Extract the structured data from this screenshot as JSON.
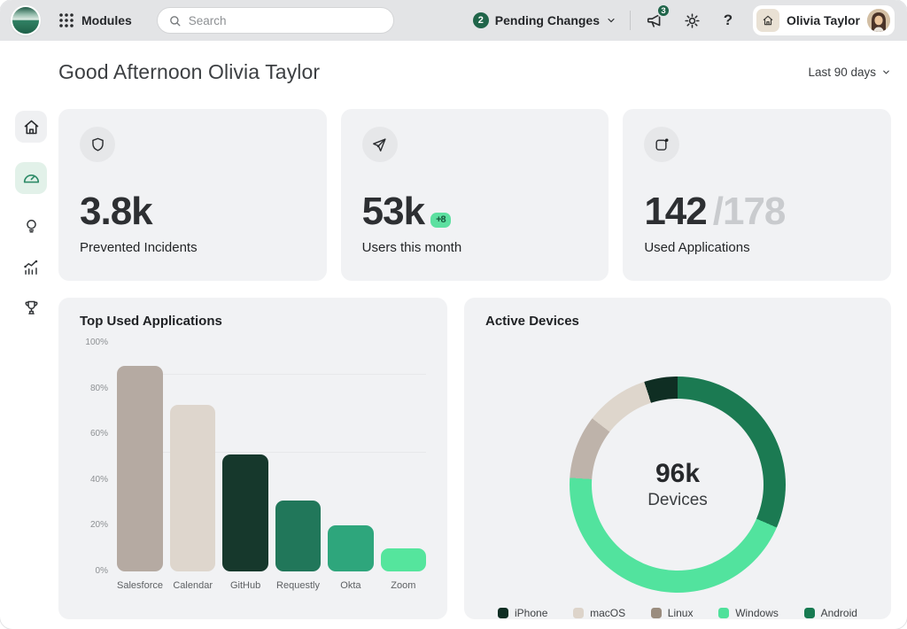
{
  "topbar": {
    "modules_label": "Modules",
    "search_placeholder": "Search",
    "pending_count": "2",
    "pending_label": "Pending Changes",
    "notifications_count": "3",
    "help_label": "?",
    "user_name": "Olivia Taylor"
  },
  "page": {
    "greeting": "Good Afternoon Olivia Taylor",
    "date_range": "Last 90 days"
  },
  "sidebar": {
    "items": [
      {
        "icon": "home-icon",
        "active": false
      },
      {
        "icon": "dashboard-gauge-icon",
        "active": true
      },
      {
        "icon": "lightbulb-icon",
        "active": false
      },
      {
        "icon": "analytics-trend-icon",
        "active": false
      },
      {
        "icon": "trophy-icon",
        "active": false
      }
    ]
  },
  "stats": [
    {
      "icon": "shield-icon",
      "value": "3.8k",
      "label": "Prevented Incidents"
    },
    {
      "icon": "send-arrow-icon",
      "value": "53k",
      "badge": "+8",
      "label": "Users this month"
    },
    {
      "icon": "app-window-dot-icon",
      "value_used": "142",
      "value_total": "/178",
      "label": "Used Applications"
    }
  ],
  "colors": {
    "topbar_bg": "#e3e4e6",
    "card_bg": "#f1f2f4",
    "accent_green_dark": "#20654a",
    "accent_mint": "#5ce0a0",
    "sidebar_active_bg": "#e2f1e9",
    "sidebar_active_icon": "#2e8b68",
    "muted_total": "#c9cbce"
  },
  "chart_data": [
    {
      "type": "bar",
      "title": "Top Used Applications",
      "categories": [
        "Salesforce",
        "Calendar",
        "GitHub",
        "Requestly",
        "Okta",
        "Zoom"
      ],
      "values": [
        90,
        73,
        51,
        31,
        20,
        10
      ],
      "unit": "%",
      "colors": [
        "#b5aaa2",
        "#ded6cd",
        "#16382c",
        "#21775a",
        "#2ea67c",
        "#55e59d"
      ],
      "ylabel_ticks": [
        "0%",
        "20%",
        "40%",
        "60%",
        "80%",
        "100%"
      ],
      "ylim": [
        0,
        100
      ],
      "gridlines_pct": [
        52,
        86
      ],
      "legend_position": "none"
    },
    {
      "type": "donut",
      "title": "Active Devices",
      "center_value": "96k",
      "center_label": "Devices",
      "start_angle_deg": 0,
      "direction": "clockwise",
      "segments": [
        {
          "name": "Android",
          "value": 31.5,
          "color": "#1b7a52",
          "swatch": "#177a51"
        },
        {
          "name": "Windows",
          "value": 44.5,
          "color": "#52e39e",
          "swatch": "#4fe19b"
        },
        {
          "name": "Linux",
          "value": 9.5,
          "color": "#beb3aa",
          "swatch": "#9a8c7e"
        },
        {
          "name": "macOS",
          "value": 9.5,
          "color": "#ded6cc",
          "swatch": "#ddd4ca"
        },
        {
          "name": "iPhone",
          "value": 5,
          "color": "#0f2e23",
          "swatch": "#0f2e23"
        }
      ],
      "legend_order": [
        "iPhone",
        "macOS",
        "Linux",
        "Windows",
        "Android"
      ],
      "legend_position": "bottom"
    }
  ]
}
